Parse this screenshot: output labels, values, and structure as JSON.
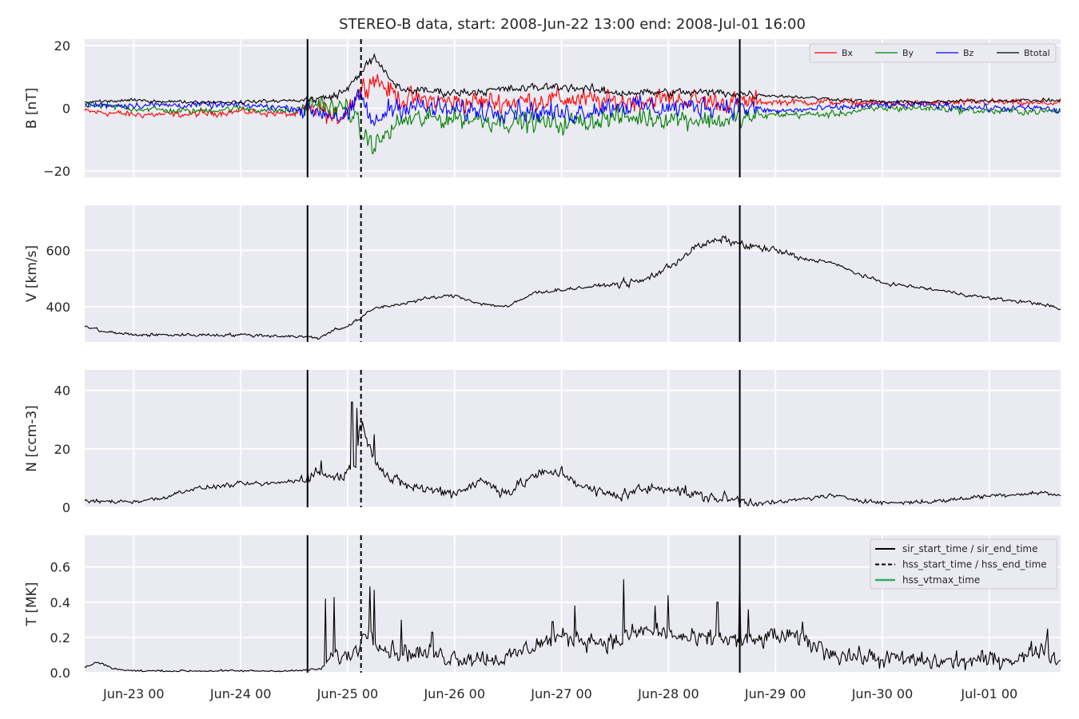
{
  "title": "STEREO-B data, start: 2008-Jun-22 13:00  end: 2008-Jul-01 16:00",
  "colors": {
    "panel_bg": "#EAEAF2",
    "grid": "#FFFFFF",
    "bx": "#FF0000",
    "by": "#008000",
    "bz": "#0000FF",
    "btotal": "#000000",
    "event_line": "#000000",
    "hss_vtmax": "#2CB35A"
  },
  "chart_data": [
    {
      "type": "line",
      "panel": "magnetic_field",
      "ylabel": "B [nT]",
      "ylim": [
        -22,
        22
      ],
      "yticks": [
        -20,
        0,
        20
      ],
      "ytick_labels": [
        "−20",
        "0",
        "20"
      ],
      "xlim": [
        "2008-06-22 13:00",
        "2008-07-01 16:00"
      ],
      "grid": true,
      "legend": {
        "placement": "upper right",
        "ncol": 4
      },
      "series": [
        {
          "name": "Bx",
          "color": "#FF0000",
          "x": [
            "06-22 13:00",
            "06-23 00:00",
            "06-23 12:00",
            "06-24 00:00",
            "06-24 12:00",
            "06-24 18:00",
            "06-24 21:00",
            "06-25 00:00",
            "06-25 03:00",
            "06-25 06:00",
            "06-25 09:00",
            "06-25 12:00",
            "06-26 00:00",
            "06-26 12:00",
            "06-27 00:00",
            "06-27 12:00",
            "06-28 00:00",
            "06-28 12:00",
            "06-29 00:00",
            "06-29 12:00",
            "06-30 00:00",
            "06-30 12:00",
            "07-01 00:00",
            "07-01 12:00",
            "07-01 16:00"
          ],
          "y": [
            -1,
            -2,
            -2,
            -1,
            -2,
            0,
            -4,
            0,
            6,
            10,
            6,
            3,
            2,
            2,
            3,
            2,
            3,
            2,
            2,
            2,
            1.5,
            1.5,
            2,
            1.5,
            2
          ]
        },
        {
          "name": "By",
          "color": "#008000",
          "x": [
            "06-22 13:00",
            "06-23 00:00",
            "06-23 12:00",
            "06-24 00:00",
            "06-24 12:00",
            "06-24 18:00",
            "06-24 21:00",
            "06-25 00:00",
            "06-25 03:00",
            "06-25 06:00",
            "06-25 09:00",
            "06-25 12:00",
            "06-26 00:00",
            "06-26 12:00",
            "06-27 00:00",
            "06-27 12:00",
            "06-28 00:00",
            "06-28 12:00",
            "06-29 00:00",
            "06-29 12:00",
            "06-30 00:00",
            "06-30 12:00",
            "07-01 00:00",
            "07-01 12:00",
            "07-01 16:00"
          ],
          "y": [
            1,
            0,
            -1,
            0,
            -1,
            2,
            -1,
            1,
            -8,
            -12,
            -8,
            -4,
            -3,
            -4,
            -5,
            -3,
            -3,
            -4,
            -2,
            -2,
            0,
            0,
            -1,
            -1,
            -1
          ]
        },
        {
          "name": "Bz",
          "color": "#0000FF",
          "x": [
            "06-22 13:00",
            "06-23 00:00",
            "06-23 12:00",
            "06-24 00:00",
            "06-24 12:00",
            "06-24 18:00",
            "06-24 21:00",
            "06-25 00:00",
            "06-25 03:00",
            "06-25 06:00",
            "06-25 09:00",
            "06-25 12:00",
            "06-26 00:00",
            "06-26 12:00",
            "06-27 00:00",
            "06-27 12:00",
            "06-28 00:00",
            "06-28 12:00",
            "06-29 00:00",
            "06-29 12:00",
            "06-30 00:00",
            "06-30 12:00",
            "07-01 00:00",
            "07-01 12:00",
            "07-01 16:00"
          ],
          "y": [
            1,
            1,
            1,
            1,
            0,
            -1,
            -2,
            -3,
            4,
            -6,
            0,
            1,
            -1,
            0,
            -2,
            1,
            0,
            1,
            -1,
            0,
            1,
            1,
            0,
            0,
            -1
          ]
        },
        {
          "name": "Btotal",
          "color": "#000000",
          "x": [
            "06-22 13:00",
            "06-23 00:00",
            "06-23 12:00",
            "06-24 00:00",
            "06-24 12:00",
            "06-24 18:00",
            "06-24 21:00",
            "06-25 00:00",
            "06-25 03:00",
            "06-25 06:00",
            "06-25 09:00",
            "06-25 12:00",
            "06-26 00:00",
            "06-26 12:00",
            "06-27 00:00",
            "06-27 12:00",
            "06-28 00:00",
            "06-28 12:00",
            "06-29 00:00",
            "06-29 12:00",
            "06-30 00:00",
            "06-30 12:00",
            "07-01 00:00",
            "07-01 12:00",
            "07-01 16:00"
          ],
          "y": [
            2,
            2.5,
            2,
            2,
            2.5,
            3,
            4,
            6,
            12,
            16,
            10,
            6,
            5,
            6,
            7,
            5,
            5,
            5,
            4,
            3,
            2,
            2,
            2.5,
            2.5,
            2.5
          ]
        }
      ]
    },
    {
      "type": "line",
      "panel": "speed",
      "ylabel": "V [km/s]",
      "ylim": [
        275,
        760
      ],
      "yticks": [
        400,
        600
      ],
      "ytick_labels": [
        "400",
        "600"
      ],
      "grid": true,
      "series": [
        {
          "color": "#000000",
          "x": [
            "06-22 13:00",
            "06-22 18:00",
            "06-23 00:00",
            "06-23 12:00",
            "06-24 00:00",
            "06-24 12:00",
            "06-24 18:00",
            "06-24 21:00",
            "06-25 00:00",
            "06-25 03:00",
            "06-25 06:00",
            "06-25 12:00",
            "06-25 18:00",
            "06-26 00:00",
            "06-26 06:00",
            "06-26 12:00",
            "06-26 18:00",
            "06-27 00:00",
            "06-27 12:00",
            "06-27 18:00",
            "06-28 00:00",
            "06-28 06:00",
            "06-28 12:00",
            "06-28 18:00",
            "06-29 00:00",
            "06-29 06:00",
            "06-29 12:00",
            "06-29 18:00",
            "06-30 00:00",
            "06-30 12:00",
            "07-01 00:00",
            "07-01 12:00",
            "07-01 16:00"
          ],
          "y": [
            330,
            310,
            300,
            300,
            300,
            295,
            290,
            320,
            330,
            360,
            395,
            410,
            430,
            440,
            410,
            400,
            450,
            460,
            480,
            490,
            540,
            610,
            640,
            615,
            600,
            570,
            560,
            520,
            485,
            460,
            430,
            410,
            390
          ]
        }
      ]
    },
    {
      "type": "line",
      "panel": "density",
      "ylabel": "N [ccm-3]",
      "ylim": [
        0,
        47
      ],
      "yticks": [
        0,
        20,
        40
      ],
      "ytick_labels": [
        "0",
        "20",
        "40"
      ],
      "grid": true,
      "series": [
        {
          "color": "#000000",
          "x": [
            "06-22 13:00",
            "06-23 00:00",
            "06-23 06:00",
            "06-23 12:00",
            "06-24 00:00",
            "06-24 06:00",
            "06-24 12:00",
            "06-24 18:00",
            "06-24 21:00",
            "06-25 00:00",
            "06-25 02:00",
            "06-25 03:00",
            "06-25 06:00",
            "06-25 09:00",
            "06-25 12:00",
            "06-25 18:00",
            "06-26 00:00",
            "06-26 06:00",
            "06-26 12:00",
            "06-26 18:00",
            "06-27 00:00",
            "06-27 06:00",
            "06-27 12:00",
            "06-27 18:00",
            "06-28 00:00",
            "06-28 06:00",
            "06-28 12:00",
            "06-28 18:00",
            "06-29 00:00",
            "06-29 12:00",
            "06-30 00:00",
            "06-30 12:00",
            "07-01 00:00",
            "07-01 12:00",
            "07-01 16:00"
          ],
          "y": [
            2,
            2,
            3,
            6,
            8,
            8,
            9,
            12,
            10,
            12,
            16,
            30,
            17,
            10,
            8,
            6,
            5,
            9,
            5,
            11,
            12,
            6,
            4,
            6,
            7,
            4,
            3,
            2,
            1.5,
            4,
            1.5,
            2,
            4,
            5,
            4
          ]
        }
      ]
    },
    {
      "type": "line",
      "panel": "temperature",
      "ylabel": "T [MK]",
      "ylim": [
        0,
        0.78
      ],
      "yticks": [
        0.0,
        0.2,
        0.4,
        0.6
      ],
      "ytick_labels": [
        "0.0",
        "0.2",
        "0.4",
        "0.6"
      ],
      "xticks": [
        "06-23 00:00",
        "06-24 00:00",
        "06-25 00:00",
        "06-26 00:00",
        "06-27 00:00",
        "06-28 00:00",
        "06-29 00:00",
        "06-30 00:00",
        "07-01 00:00"
      ],
      "xtick_labels": [
        "Jun-23 00",
        "Jun-24 00",
        "Jun-25 00",
        "Jun-26 00",
        "Jun-27 00",
        "Jun-28 00",
        "Jun-29 00",
        "Jun-30 00",
        "Jul-01 00"
      ],
      "grid": true,
      "legend": {
        "placement": "upper right",
        "entries": [
          {
            "label": "sir_start_time / sir_end_time",
            "style": "solid",
            "color": "#000000"
          },
          {
            "label": "hss_start_time / hss_end_time",
            "style": "dashed",
            "color": "#000000"
          },
          {
            "label": "hss_vtmax_time",
            "style": "solid",
            "color": "#2CB35A"
          }
        ]
      },
      "series": [
        {
          "color": "#000000",
          "x": [
            "06-22 13:00",
            "06-22 16:00",
            "06-22 20:00",
            "06-23 00:00",
            "06-23 12:00",
            "06-24 00:00",
            "06-24 12:00",
            "06-24 18:00",
            "06-24 20:00",
            "06-24 22:00",
            "06-25 00:00",
            "06-25 03:00",
            "06-25 05:00",
            "06-25 08:00",
            "06-25 12:00",
            "06-26 00:00",
            "06-26 12:00",
            "06-26 18:00",
            "06-27 00:00",
            "06-27 06:00",
            "06-27 12:00",
            "06-27 18:00",
            "06-28 00:00",
            "06-28 06:00",
            "06-28 12:00",
            "06-28 18:00",
            "06-29 00:00",
            "06-29 06:00",
            "06-29 12:00",
            "06-29 18:00",
            "06-30 00:00",
            "06-30 12:00",
            "07-01 00:00",
            "07-01 08:00",
            "07-01 12:00",
            "07-01 16:00"
          ],
          "y": [
            0.03,
            0.06,
            0.02,
            0.01,
            0.01,
            0.01,
            0.01,
            0.02,
            0.08,
            0.1,
            0.08,
            0.18,
            0.25,
            0.14,
            0.12,
            0.09,
            0.08,
            0.16,
            0.2,
            0.19,
            0.17,
            0.24,
            0.22,
            0.18,
            0.2,
            0.17,
            0.21,
            0.19,
            0.12,
            0.09,
            0.08,
            0.06,
            0.07,
            0.09,
            0.15,
            0.05
          ]
        }
      ]
    }
  ],
  "events": {
    "sir_start_time": "06-24 15:00",
    "sir_end_time": "06-28 16:00",
    "hss_start_time": "06-25 03:00"
  }
}
